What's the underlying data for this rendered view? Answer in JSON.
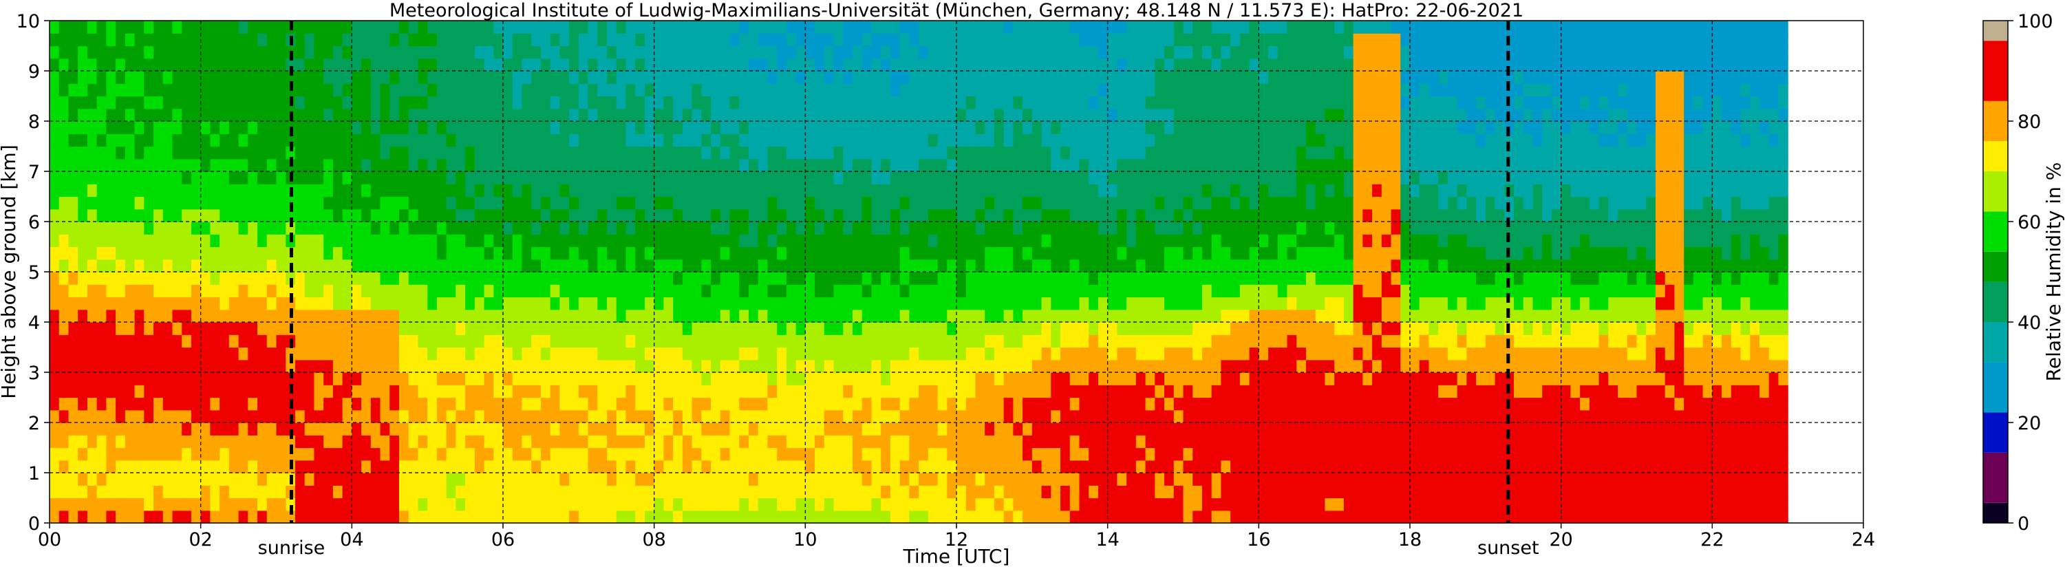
{
  "chart_data": {
    "type": "heatmap",
    "title": "Meteorological Institute of Ludwig-Maximilians-Universität (München, Germany; 48.148 N / 11.573 E):    HatPro: 22-06-2021",
    "xlabel": "Time [UTC]",
    "ylabel": "Height above ground [km]",
    "xlim": [
      0,
      24
    ],
    "ylim": [
      0,
      10
    ],
    "xticks": [
      "00",
      "02",
      "04",
      "06",
      "08",
      "10",
      "12",
      "14",
      "16",
      "18",
      "20",
      "22",
      "24"
    ],
    "yticks": [
      "0",
      "1",
      "2",
      "3",
      "4",
      "5",
      "6",
      "7",
      "8",
      "9",
      "10"
    ],
    "grid": true,
    "data_end_hour": 23.0,
    "colorbar": {
      "label": "Relative Humidity in %",
      "ticks": [
        "0",
        "20",
        "40",
        "60",
        "80",
        "100"
      ],
      "range": [
        0,
        100
      ],
      "colors": [
        {
          "from": 0,
          "to": 4,
          "color": "#0a0022"
        },
        {
          "from": 4,
          "to": 14,
          "color": "#6b0055"
        },
        {
          "from": 14,
          "to": 22,
          "color": "#0010c8"
        },
        {
          "from": 22,
          "to": 32,
          "color": "#0099cc"
        },
        {
          "from": 32,
          "to": 40,
          "color": "#00a7a7"
        },
        {
          "from": 40,
          "to": 48,
          "color": "#00a05a"
        },
        {
          "from": 48,
          "to": 54,
          "color": "#00a000"
        },
        {
          "from": 54,
          "to": 62,
          "color": "#00dd00"
        },
        {
          "from": 62,
          "to": 70,
          "color": "#aaee00"
        },
        {
          "from": 70,
          "to": 76,
          "color": "#ffee00"
        },
        {
          "from": 76,
          "to": 84,
          "color": "#ffa500"
        },
        {
          "from": 84,
          "to": 96,
          "color": "#ee0000"
        },
        {
          "from": 96,
          "to": 100,
          "color": "#c0b090"
        }
      ]
    },
    "events": [
      {
        "name": "sunrise",
        "hour": 3.2
      },
      {
        "name": "sunset",
        "hour": 19.3
      }
    ],
    "heights_km": [
      0,
      0.5,
      1,
      1.5,
      2,
      2.5,
      3,
      3.5,
      4,
      4.5,
      5,
      5.5,
      6,
      6.5,
      7,
      7.5,
      8,
      8.5,
      9,
      9.5,
      10
    ],
    "profiles": [
      {
        "hour": 0,
        "rh": [
          88,
          76,
          74,
          77,
          82,
          84,
          88,
          88,
          85,
          78,
          73,
          70,
          66,
          62,
          58,
          56,
          55,
          54,
          54,
          53,
          52
        ]
      },
      {
        "hour": 1,
        "rh": [
          86,
          74,
          73,
          76,
          82,
          86,
          88,
          88,
          86,
          78,
          72,
          68,
          64,
          60,
          57,
          55,
          54,
          53,
          53,
          52,
          52
        ]
      },
      {
        "hour": 2,
        "rh": [
          86,
          74,
          74,
          78,
          84,
          86,
          88,
          87,
          84,
          76,
          70,
          66,
          62,
          58,
          55,
          53,
          53,
          52,
          52,
          51,
          51
        ]
      },
      {
        "hour": 3,
        "rh": [
          86,
          75,
          76,
          80,
          86,
          88,
          88,
          86,
          82,
          75,
          68,
          64,
          60,
          57,
          54,
          52,
          51,
          51,
          50,
          50,
          50
        ]
      },
      {
        "hour": 4,
        "rh": [
          82,
          74,
          76,
          80,
          84,
          84,
          82,
          80,
          76,
          70,
          64,
          60,
          56,
          53,
          51,
          50,
          49,
          48,
          48,
          48,
          47
        ]
      },
      {
        "hour": 5,
        "rh": [
          74,
          70,
          72,
          74,
          76,
          75,
          73,
          70,
          66,
          62,
          58,
          55,
          52,
          50,
          49,
          48,
          47,
          47,
          46,
          46,
          46
        ]
      },
      {
        "hour": 6,
        "rh": [
          75,
          72,
          74,
          76,
          77,
          76,
          74,
          71,
          67,
          62,
          57,
          53,
          50,
          47,
          45,
          44,
          43,
          42,
          41,
          40,
          40
        ]
      },
      {
        "hour": 7,
        "rh": [
          74,
          73,
          75,
          76,
          77,
          75,
          73,
          70,
          66,
          61,
          56,
          52,
          49,
          46,
          44,
          43,
          42,
          41,
          40,
          39,
          39
        ]
      },
      {
        "hour": 8,
        "rh": [
          70,
          72,
          74,
          75,
          76,
          74,
          72,
          68,
          64,
          59,
          55,
          52,
          49,
          46,
          43,
          41,
          40,
          39,
          38,
          37,
          36
        ]
      },
      {
        "hour": 9,
        "rh": [
          66,
          72,
          74,
          75,
          76,
          74,
          71,
          67,
          62,
          57,
          53,
          51,
          49,
          46,
          43,
          40,
          38,
          37,
          35,
          34,
          33
        ]
      },
      {
        "hour": 10,
        "rh": [
          65,
          72,
          74,
          75,
          76,
          74,
          70,
          66,
          61,
          56,
          53,
          51,
          49,
          46,
          42,
          39,
          37,
          35,
          33,
          32,
          31
        ]
      },
      {
        "hour": 11,
        "rh": [
          66,
          73,
          75,
          76,
          77,
          75,
          71,
          67,
          61,
          56,
          53,
          51,
          48,
          45,
          41,
          38,
          36,
          34,
          32,
          31,
          30
        ]
      },
      {
        "hour": 12,
        "rh": [
          70,
          75,
          77,
          78,
          79,
          77,
          73,
          68,
          62,
          57,
          54,
          51,
          48,
          45,
          42,
          40,
          39,
          38,
          37,
          36,
          35
        ]
      },
      {
        "hour": 13,
        "rh": [
          80,
          80,
          82,
          84,
          86,
          84,
          80,
          74,
          66,
          60,
          56,
          53,
          50,
          47,
          44,
          42,
          40,
          38,
          36,
          35,
          34
        ]
      },
      {
        "hour": 14,
        "rh": [
          88,
          86,
          86,
          87,
          88,
          86,
          82,
          76,
          68,
          60,
          55,
          50,
          46,
          42,
          39,
          36,
          34,
          32,
          31,
          30,
          30
        ]
      },
      {
        "hour": 15,
        "rh": [
          86,
          82,
          84,
          86,
          87,
          85,
          80,
          74,
          66,
          60,
          56,
          52,
          49,
          47,
          46,
          45,
          44,
          44,
          43,
          42,
          41
        ]
      },
      {
        "hour": 16,
        "rh": [
          88,
          86,
          87,
          88,
          88,
          88,
          87,
          84,
          76,
          66,
          58,
          53,
          50,
          47,
          45,
          44,
          43,
          42,
          41,
          40,
          39
        ]
      },
      {
        "hour": 17,
        "rh": [
          88,
          86,
          87,
          88,
          88,
          88,
          86,
          82,
          74,
          66,
          59,
          55,
          52,
          50,
          49,
          48,
          47,
          46,
          45,
          44,
          43
        ]
      },
      {
        "hour": 18,
        "rh": [
          88,
          88,
          88,
          88,
          88,
          87,
          84,
          78,
          70,
          62,
          55,
          50,
          46,
          42,
          38,
          35,
          33,
          31,
          30,
          29,
          29
        ]
      },
      {
        "hour": 19,
        "rh": [
          88,
          88,
          88,
          88,
          88,
          87,
          82,
          76,
          68,
          60,
          52,
          47,
          43,
          38,
          36,
          34,
          32,
          30,
          29,
          29,
          28
        ]
      },
      {
        "hour": 20,
        "rh": [
          88,
          88,
          88,
          88,
          88,
          86,
          80,
          76,
          68,
          60,
          52,
          47,
          43,
          38,
          36,
          34,
          32,
          30,
          29,
          29,
          28
        ]
      },
      {
        "hour": 21,
        "rh": [
          88,
          88,
          88,
          88,
          88,
          86,
          80,
          76,
          68,
          60,
          52,
          47,
          43,
          38,
          36,
          34,
          32,
          30,
          29,
          29,
          28
        ]
      },
      {
        "hour": 22,
        "rh": [
          88,
          88,
          88,
          88,
          88,
          86,
          80,
          76,
          68,
          60,
          52,
          47,
          43,
          38,
          36,
          34,
          32,
          30,
          29,
          29,
          28
        ]
      },
      {
        "hour": 23,
        "rh": [
          88,
          88,
          88,
          88,
          88,
          86,
          80,
          76,
          68,
          60,
          52,
          47,
          43,
          38,
          36,
          34,
          32,
          30,
          29,
          29,
          28
        ]
      }
    ],
    "humid_events": [
      {
        "start": 3.2,
        "end": 4.6,
        "top_km": 4.3,
        "rh": 88
      },
      {
        "start": 13.6,
        "end": 14.8,
        "top_km": 3.0,
        "rh": 88
      },
      {
        "start": 15.9,
        "end": 16.7,
        "top_km": 4.3,
        "rh": 90
      },
      {
        "start": 17.2,
        "end": 17.9,
        "top_km": 9.8,
        "rh": 88
      },
      {
        "start": 21.3,
        "end": 21.6,
        "top_km": 9.0,
        "rh": 88
      }
    ]
  }
}
